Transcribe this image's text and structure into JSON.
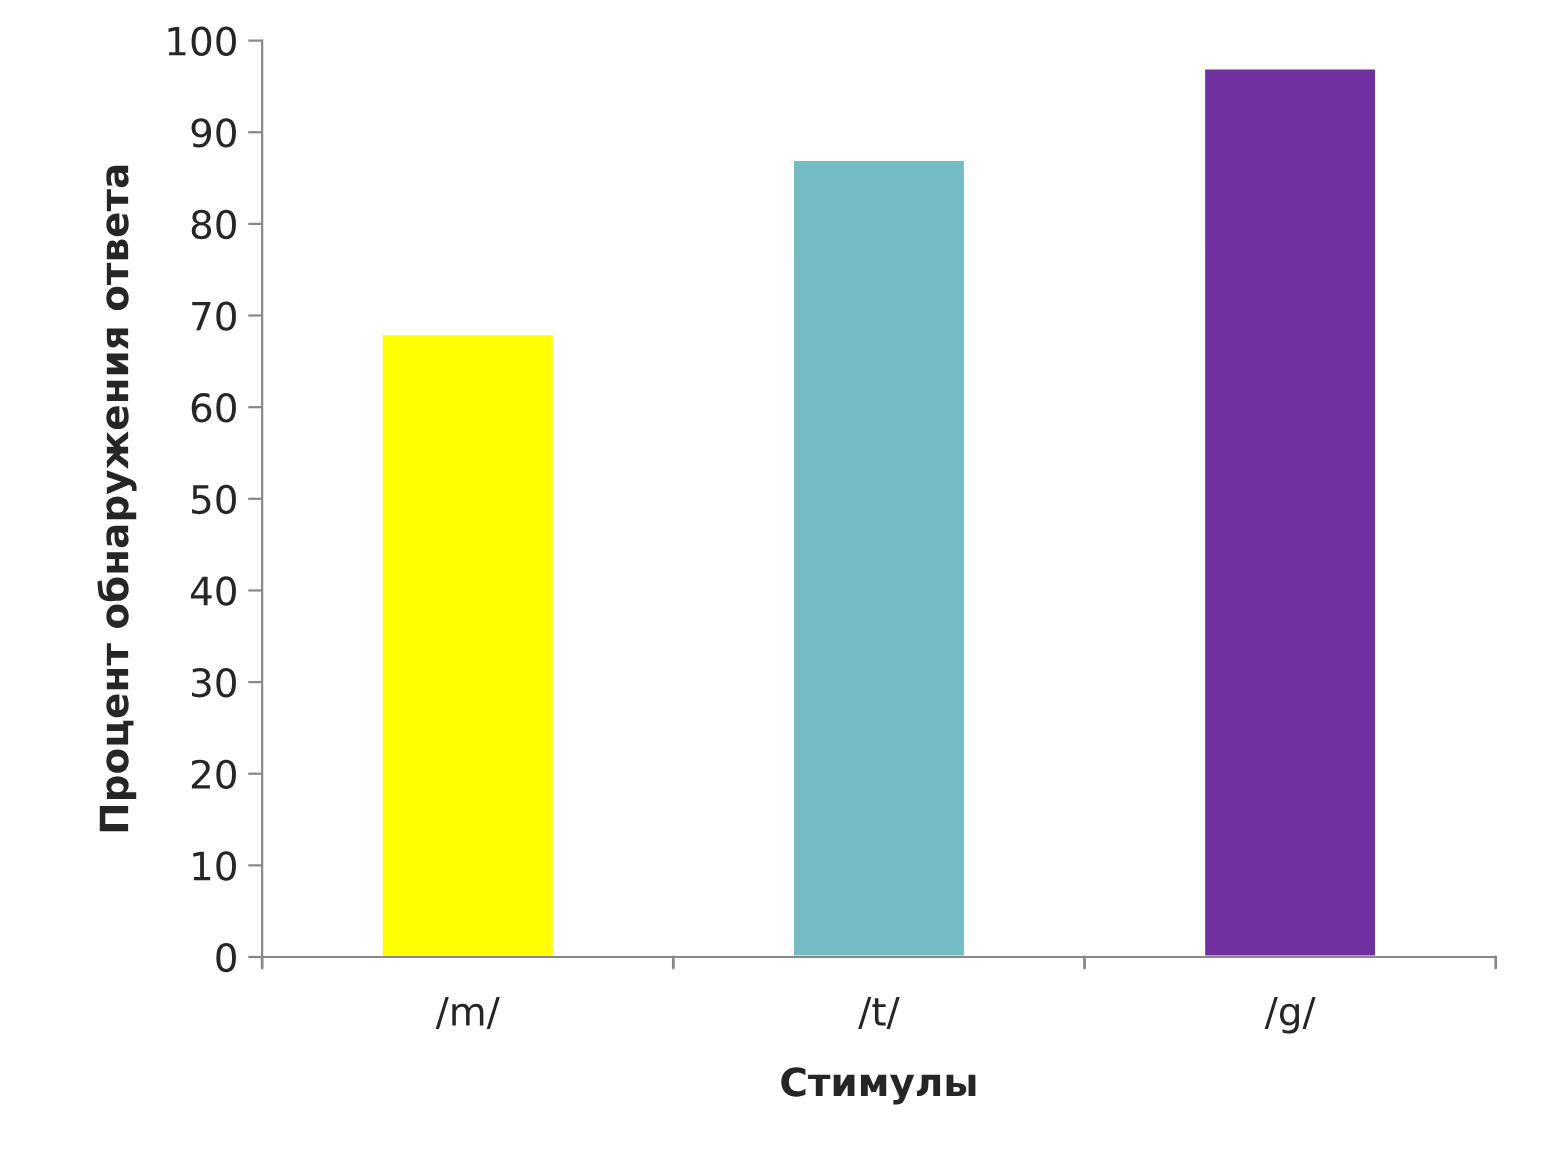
{
  "chart_data": {
    "type": "bar",
    "categories": [
      "/m/",
      "/t/",
      "/g/"
    ],
    "values": [
      68,
      87,
      97
    ],
    "colors": [
      "#ffff00",
      "#74bcc4",
      "#7030a0"
    ],
    "xlabel": "Стимулы",
    "ylabel": "Процент обнаружения ответа",
    "ylim": [
      0,
      100
    ],
    "yticks": [
      0,
      10,
      20,
      30,
      40,
      50,
      60,
      70,
      80,
      90,
      100
    ],
    "grid": false,
    "legend": false
  }
}
